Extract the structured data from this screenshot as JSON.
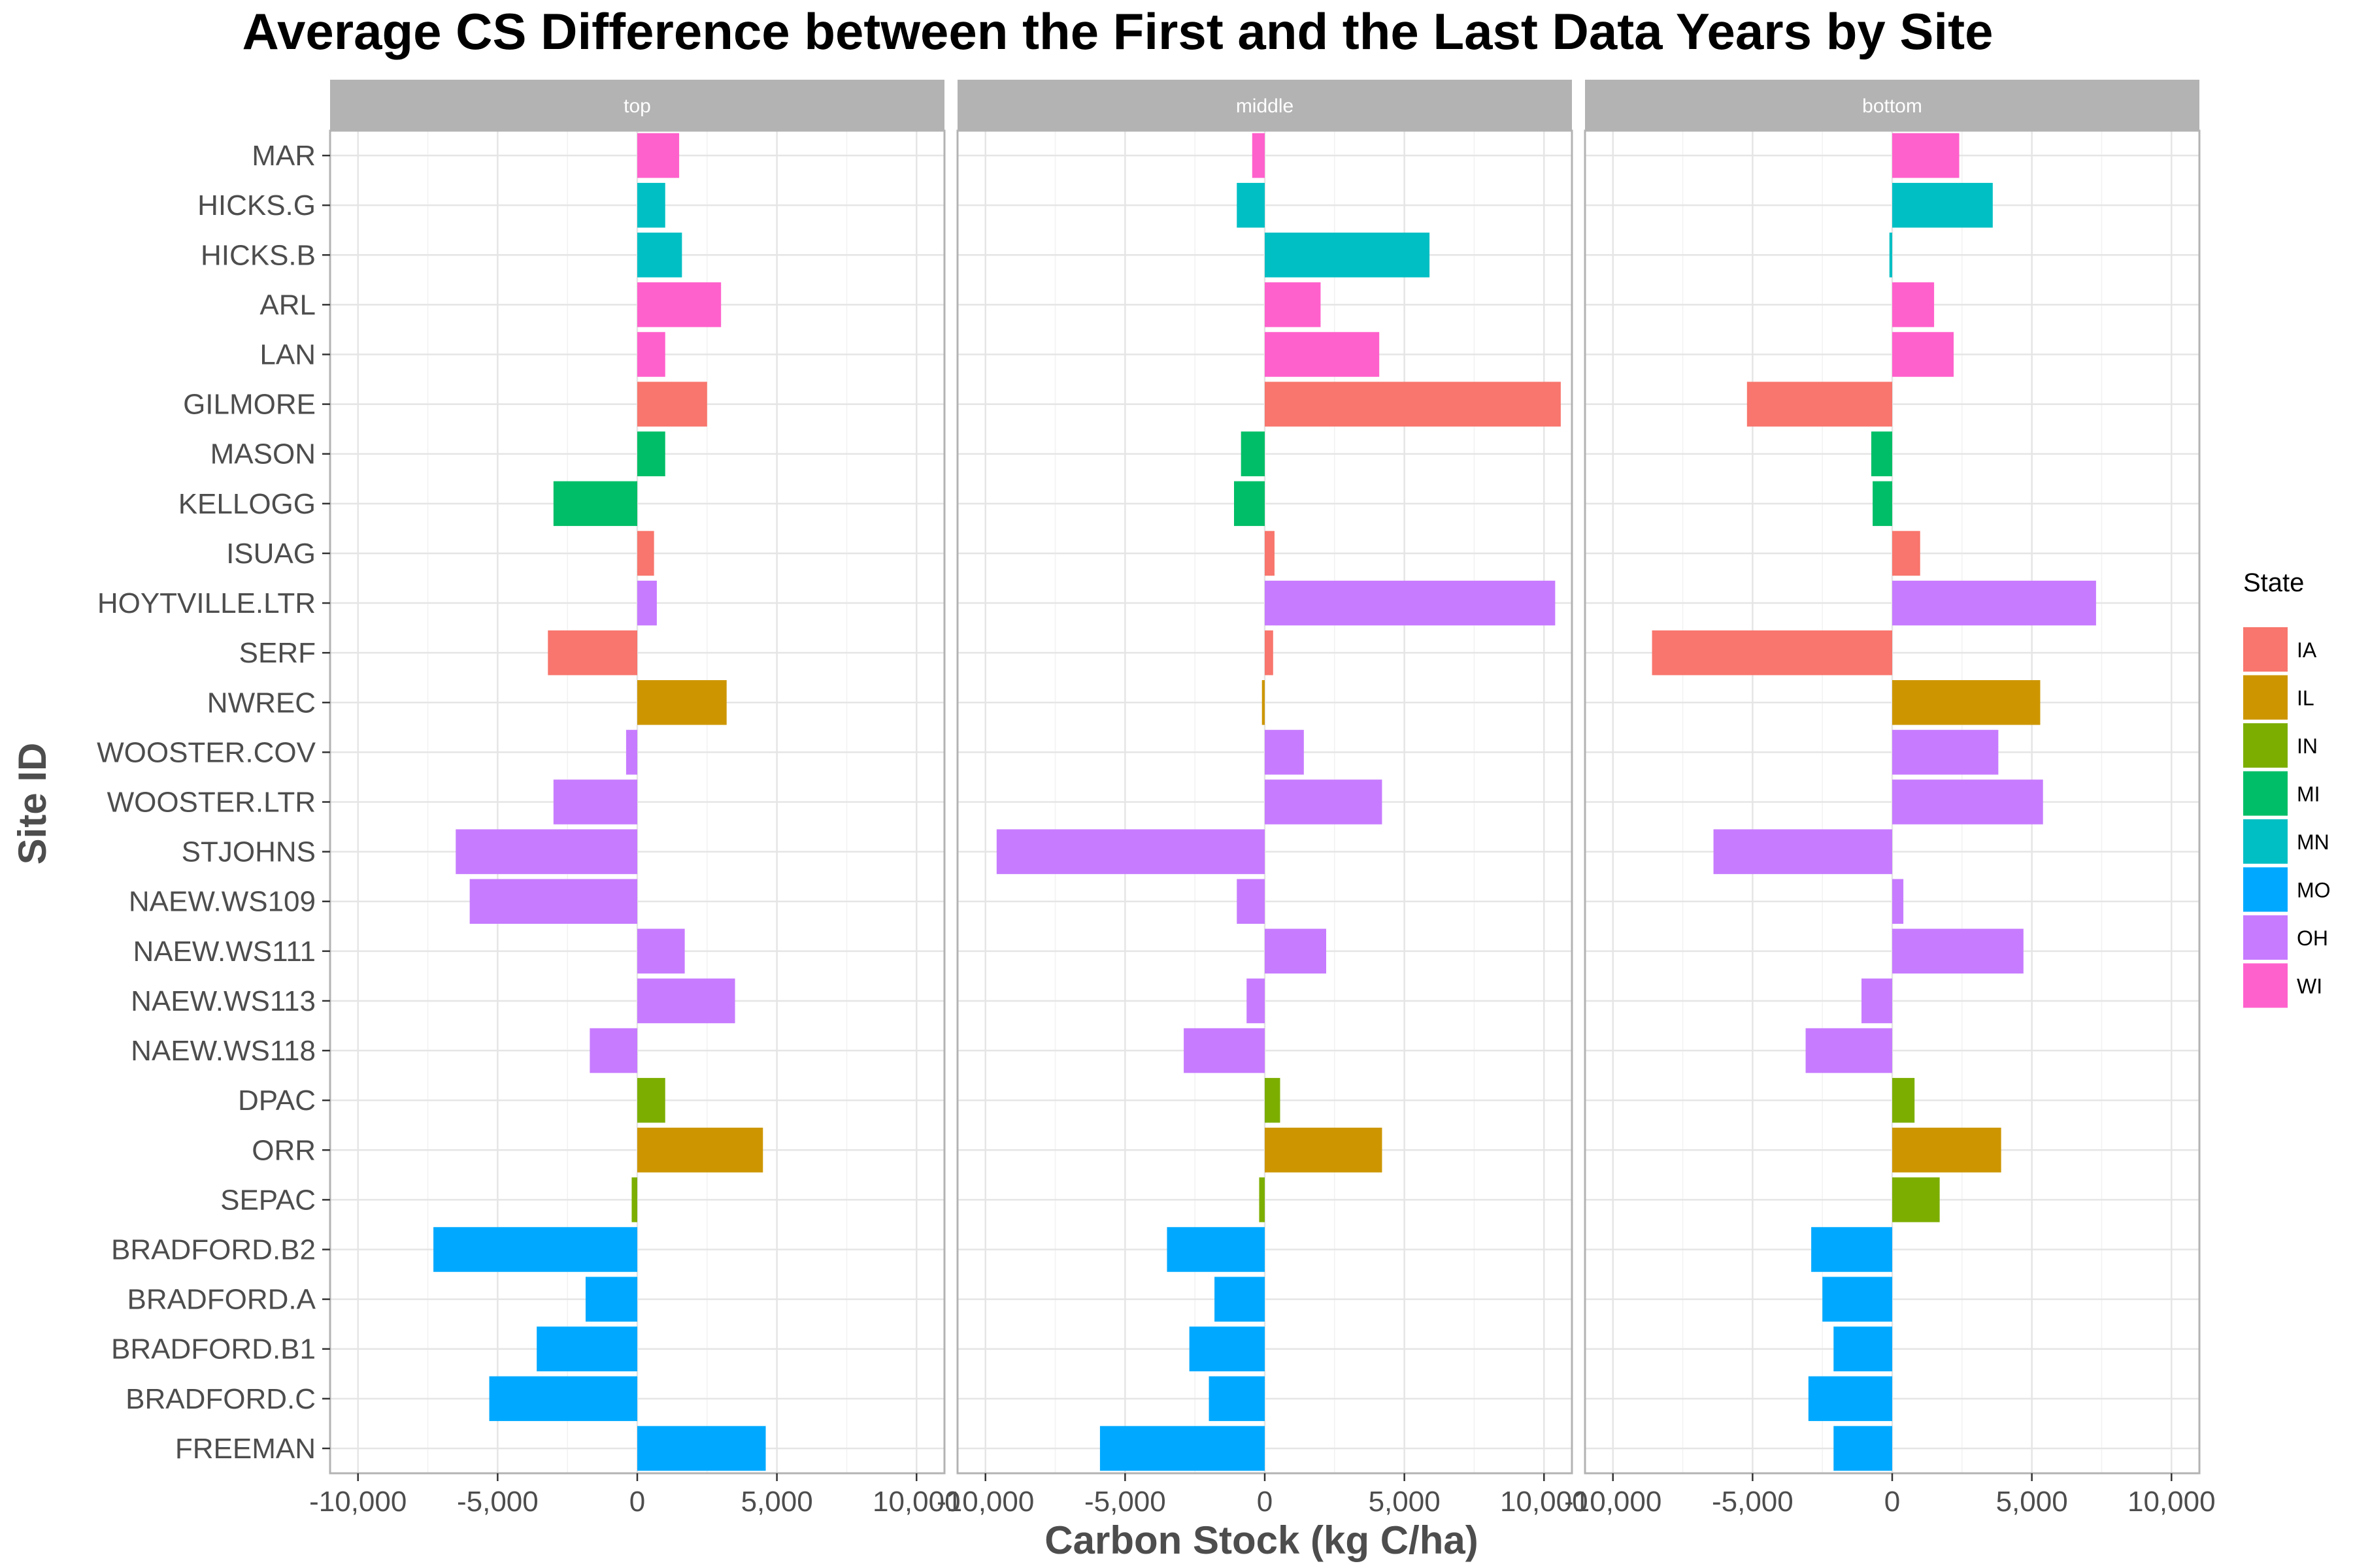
{
  "chart_data": {
    "type": "bar",
    "orientation": "horizontal",
    "title": "Average CS Difference between the First and the Last Data Years by Site",
    "xlabel": "Carbon Stock (kg C/ha)",
    "ylabel": "Site ID",
    "xlim": [
      -11000,
      11000
    ],
    "x_ticks": [
      -10000,
      -5000,
      0,
      5000,
      10000
    ],
    "x_tick_labels": [
      "-10,000",
      "-5,000",
      "0",
      "5,000",
      "10,000"
    ],
    "grid": true,
    "legend": {
      "title": "State",
      "position": "right",
      "entries": [
        {
          "label": "IA",
          "color": "#F8766D"
        },
        {
          "label": "IL",
          "color": "#CD9600"
        },
        {
          "label": "IN",
          "color": "#7CAE00"
        },
        {
          "label": "MI",
          "color": "#00BE67"
        },
        {
          "label": "MN",
          "color": "#00BFC4"
        },
        {
          "label": "MO",
          "color": "#00A9FF"
        },
        {
          "label": "OH",
          "color": "#C77CFF"
        },
        {
          "label": "WI",
          "color": "#FF61CC"
        }
      ]
    },
    "categories": [
      "MAR",
      "HICKS.G",
      "HICKS.B",
      "ARL",
      "LAN",
      "GILMORE",
      "MASON",
      "KELLOGG",
      "ISUAG",
      "HOYTVILLE.LTR",
      "SERF",
      "NWREC",
      "WOOSTER.COV",
      "WOOSTER.LTR",
      "STJOHNS",
      "NAEW.WS109",
      "NAEW.WS111",
      "NAEW.WS113",
      "NAEW.WS118",
      "DPAC",
      "ORR",
      "SEPAC",
      "BRADFORD.B2",
      "BRADFORD.A",
      "BRADFORD.B1",
      "BRADFORD.C",
      "FREEMAN"
    ],
    "state": [
      "WI",
      "MN",
      "MN",
      "WI",
      "WI",
      "IA",
      "MI",
      "MI",
      "IA",
      "OH",
      "IA",
      "IL",
      "OH",
      "OH",
      "OH",
      "OH",
      "OH",
      "OH",
      "OH",
      "IN",
      "IL",
      "IN",
      "MO",
      "MO",
      "MO",
      "MO",
      "MO"
    ],
    "panels": [
      {
        "name": "top",
        "values": [
          1500,
          1000,
          1600,
          3000,
          1000,
          2500,
          1000,
          -3000,
          600,
          700,
          -3200,
          3200,
          -400,
          -3000,
          -6500,
          -6000,
          1700,
          3500,
          -1700,
          1000,
          4500,
          -200,
          -7300,
          -1850,
          -3600,
          -5300,
          4600
        ]
      },
      {
        "name": "middle",
        "values": [
          -450,
          -1000,
          5900,
          2000,
          4100,
          10600,
          -850,
          -1100,
          350,
          10400,
          300,
          -100,
          1400,
          4200,
          -9600,
          -1000,
          2200,
          -650,
          -2900,
          550,
          4200,
          -200,
          -3500,
          -1800,
          -2700,
          -2000,
          -5900
        ]
      },
      {
        "name": "bottom",
        "values": [
          2400,
          3600,
          -100,
          1500,
          2200,
          -5200,
          -750,
          -700,
          1000,
          7300,
          -8600,
          5300,
          3800,
          5400,
          -6400,
          400,
          4700,
          -1100,
          -3100,
          800,
          3900,
          1700,
          -2900,
          -2500,
          -2100,
          -3000,
          -2100
        ]
      }
    ]
  }
}
